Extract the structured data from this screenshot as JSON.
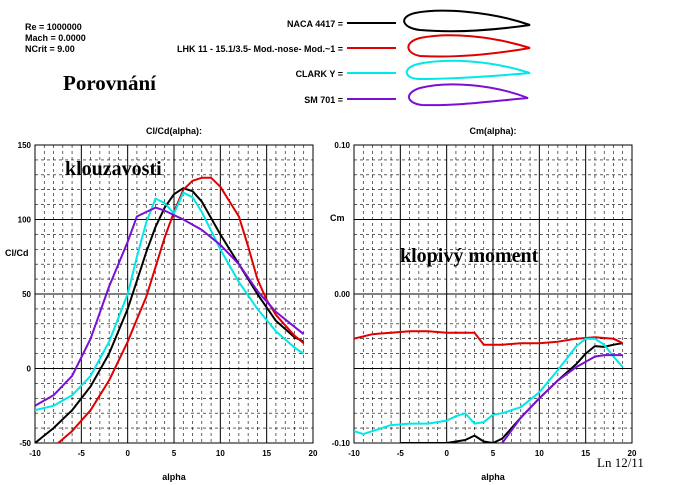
{
  "info": {
    "re": "Re = 1000000",
    "mach": "Mach = 0.0000",
    "ncrit": "NCrit = 9.00"
  },
  "heading": "Porovnání",
  "footer": "Ln 12/11",
  "legend": [
    {
      "label": "NACA 4417 =",
      "color": "#000000"
    },
    {
      "label": "LHK 11 - 15.1/3.5- Mod.-nose- Mod.~1 =",
      "color": "#e00000"
    },
    {
      "label": "CLARK Y =",
      "color": "#00e8e8"
    },
    {
      "label": "SM 701 =",
      "color": "#7a10d8"
    }
  ],
  "chart_data": [
    {
      "type": "line",
      "title": "Cl/Cd(alpha):",
      "annotation": "klouzavosti",
      "xlabel": "alpha",
      "ylabel": "Cl/Cd",
      "xlim": [
        -10,
        20
      ],
      "ylim": [
        -50,
        150
      ],
      "xticks": [
        -10,
        -5,
        0,
        5,
        10,
        15,
        20
      ],
      "yticks": [
        -50,
        0,
        50,
        100,
        150
      ],
      "grid": true,
      "series": [
        {
          "name": "NACA 4417",
          "color": "#000000",
          "x": [
            -10,
            -8,
            -6,
            -4,
            -2,
            0,
            2,
            3,
            4,
            5,
            6,
            7,
            8,
            10,
            12,
            14,
            16,
            18,
            19
          ],
          "y": [
            -50,
            -40,
            -28,
            -12,
            10,
            40,
            78,
            95,
            108,
            117,
            121,
            119,
            112,
            90,
            70,
            50,
            32,
            21,
            18
          ]
        },
        {
          "name": "LHK 11 - 15.1/3.5- Mod.-nose- Mod.~1",
          "color": "#e00000",
          "x": [
            -7.5,
            -6,
            -4,
            -2,
            0,
            1,
            2,
            3,
            4,
            5,
            6,
            7,
            8,
            9,
            10,
            11,
            12,
            13,
            14,
            15,
            16,
            18,
            19
          ],
          "y": [
            -50,
            -42,
            -28,
            -8,
            18,
            33,
            48,
            68,
            88,
            105,
            120,
            126,
            128,
            128,
            122,
            112,
            102,
            82,
            60,
            46,
            36,
            22,
            17
          ]
        },
        {
          "name": "CLARK Y",
          "color": "#00e8e8",
          "x": [
            -10,
            -8,
            -6,
            -4,
            -2,
            0,
            1,
            2,
            3,
            4,
            5,
            6,
            7,
            8,
            10,
            12,
            14,
            16,
            18,
            19
          ],
          "y": [
            -28,
            -25,
            -18,
            -5,
            18,
            50,
            75,
            98,
            114,
            111,
            104,
            118,
            115,
            105,
            80,
            58,
            40,
            25,
            14,
            10
          ]
        },
        {
          "name": "SM 701",
          "color": "#7a10d8",
          "x": [
            -10,
            -8,
            -6,
            -4,
            -2,
            0,
            1,
            2,
            3,
            4,
            6,
            8,
            10,
            12,
            14,
            16,
            18,
            19
          ],
          "y": [
            -25,
            -18,
            -5,
            20,
            55,
            85,
            102,
            105,
            108,
            106,
            100,
            93,
            83,
            70,
            52,
            38,
            28,
            23
          ]
        }
      ]
    },
    {
      "type": "line",
      "title": "Cm(alpha):",
      "annotation": "klopivý moment",
      "xlabel": "alpha",
      "ylabel": "Cm",
      "xlim": [
        -10,
        20
      ],
      "ylim": [
        -0.1,
        0.1
      ],
      "xticks": [
        -10,
        -5,
        0,
        5,
        10,
        15,
        20
      ],
      "yticks": [
        -0.1,
        0.0,
        0.1
      ],
      "ytick_labels": [
        "-0.10",
        "0.00",
        "0.10"
      ],
      "grid": true,
      "series": [
        {
          "name": "NACA 4417",
          "color": "#000000",
          "x": [
            -5,
            0,
            2,
            3,
            4,
            5,
            6,
            8,
            10,
            12,
            14,
            15,
            16,
            17,
            18,
            19
          ],
          "y": [
            -0.1,
            -0.1,
            -0.098,
            -0.095,
            -0.099,
            -0.1,
            -0.097,
            -0.083,
            -0.07,
            -0.058,
            -0.047,
            -0.04,
            -0.035,
            -0.0355,
            -0.034,
            -0.033
          ]
        },
        {
          "name": "LHK 11 - 15.1/3.5- Mod.-nose- Mod.~1",
          "color": "#e00000",
          "x": [
            -10,
            -8,
            -6,
            -4,
            -2,
            0,
            2,
            3,
            4,
            5,
            6,
            8,
            10,
            12,
            14,
            16,
            18,
            19
          ],
          "y": [
            -0.03,
            -0.027,
            -0.026,
            -0.025,
            -0.025,
            -0.026,
            -0.026,
            -0.026,
            -0.034,
            -0.034,
            -0.034,
            -0.033,
            -0.033,
            -0.032,
            -0.03,
            -0.029,
            -0.03,
            -0.033
          ]
        },
        {
          "name": "CLARK Y",
          "color": "#00e8e8",
          "x": [
            -10,
            -9,
            -8,
            -6,
            -4,
            -2,
            0,
            1,
            2,
            3,
            4,
            5,
            6,
            8,
            10,
            12,
            14,
            15,
            16,
            17,
            18,
            19
          ],
          "y": [
            -0.092,
            -0.094,
            -0.092,
            -0.088,
            -0.087,
            -0.087,
            -0.085,
            -0.082,
            -0.08,
            -0.087,
            -0.086,
            -0.081,
            -0.08,
            -0.076,
            -0.066,
            -0.051,
            -0.035,
            -0.03,
            -0.03,
            -0.034,
            -0.042,
            -0.049
          ]
        },
        {
          "name": "SM 701",
          "color": "#7a10d8",
          "x": [
            6,
            8,
            10,
            12,
            14,
            16,
            17,
            18,
            19
          ],
          "y": [
            -0.1,
            -0.083,
            -0.07,
            -0.058,
            -0.049,
            -0.042,
            -0.041,
            -0.041,
            -0.041
          ]
        }
      ]
    }
  ]
}
